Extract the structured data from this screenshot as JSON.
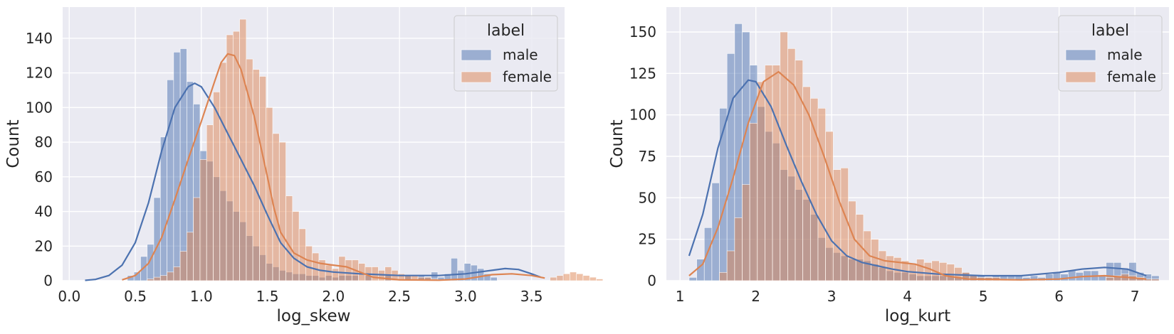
{
  "colors": {
    "male": "#4c72b0",
    "female": "#dd8452",
    "panel": "#eaeaf2",
    "grid": "#ffffff"
  },
  "chart_data": [
    {
      "type": "histogram",
      "xlabel": "log_skew",
      "ylabel": "Count",
      "xlim": [
        -0.05,
        3.75
      ],
      "ylim": [
        0,
        158
      ],
      "xticks": [
        "0.0",
        "0.5",
        "1.0",
        "1.5",
        "2.0",
        "2.5",
        "3.0",
        "3.5"
      ],
      "xtick_values": [
        0.0,
        0.5,
        1.0,
        1.5,
        2.0,
        2.5,
        3.0,
        3.5
      ],
      "yticks": [
        "0",
        "20",
        "40",
        "60",
        "80",
        "100",
        "120",
        "140"
      ],
      "ytick_values": [
        0,
        20,
        40,
        60,
        80,
        100,
        120,
        140
      ],
      "bin_start": 0.44,
      "bin_width": 0.05,
      "legend": {
        "title": "label",
        "entries": [
          "male",
          "female"
        ],
        "position": "top-right"
      },
      "series": [
        {
          "name": "male",
          "counts": [
            3,
            5,
            14,
            21,
            48,
            83,
            116,
            132,
            134,
            115,
            102,
            75,
            69,
            60,
            52,
            46,
            40,
            34,
            26,
            20,
            15,
            10,
            8,
            6,
            5,
            4,
            4,
            3,
            3,
            2,
            3,
            2,
            3,
            3,
            3,
            0,
            3,
            0,
            0,
            3,
            0,
            0,
            3,
            0,
            3,
            2,
            5,
            2,
            4,
            13,
            6,
            10,
            9,
            7,
            4,
            2
          ],
          "kde": [
            [
              0.12,
              0.2
            ],
            [
              0.2,
              0.8
            ],
            [
              0.3,
              3
            ],
            [
              0.4,
              9
            ],
            [
              0.5,
              22
            ],
            [
              0.6,
              45
            ],
            [
              0.7,
              75
            ],
            [
              0.8,
              100
            ],
            [
              0.9,
              112
            ],
            [
              0.95,
              114
            ],
            [
              1.0,
              112
            ],
            [
              1.1,
              100
            ],
            [
              1.2,
              85
            ],
            [
              1.3,
              70
            ],
            [
              1.4,
              55
            ],
            [
              1.5,
              38
            ],
            [
              1.6,
              22
            ],
            [
              1.7,
              13
            ],
            [
              1.8,
              8
            ],
            [
              1.9,
              6
            ],
            [
              2.0,
              5
            ],
            [
              2.2,
              4
            ],
            [
              2.5,
              3
            ],
            [
              2.8,
              3
            ],
            [
              3.0,
              4
            ],
            [
              3.2,
              6
            ],
            [
              3.3,
              7
            ],
            [
              3.4,
              6.5
            ],
            [
              3.5,
              4
            ],
            [
              3.57,
              2
            ]
          ]
        },
        {
          "name": "female",
          "counts": [
            0,
            0,
            0,
            1,
            2,
            3,
            5,
            8,
            17,
            28,
            48,
            70,
            90,
            109,
            126,
            142,
            144,
            151,
            128,
            122,
            118,
            100,
            85,
            80,
            49,
            40,
            30,
            20,
            16,
            12,
            9,
            7,
            14,
            12,
            12,
            10,
            8,
            8,
            6,
            8,
            6,
            4,
            3,
            3,
            2,
            2,
            1,
            0,
            0,
            0,
            0,
            0,
            0,
            0,
            0,
            0,
            0,
            0,
            0,
            0,
            0,
            0,
            0,
            0,
            2,
            3,
            4,
            5,
            4,
            3,
            2,
            1
          ],
          "kde": [
            [
              0.4,
              0.5
            ],
            [
              0.5,
              3
            ],
            [
              0.6,
              10
            ],
            [
              0.7,
              25
            ],
            [
              0.8,
              47
            ],
            [
              0.9,
              70
            ],
            [
              1.0,
              92
            ],
            [
              1.1,
              115
            ],
            [
              1.15,
              126
            ],
            [
              1.2,
              131
            ],
            [
              1.25,
              130
            ],
            [
              1.3,
              122
            ],
            [
              1.4,
              95
            ],
            [
              1.5,
              60
            ],
            [
              1.55,
              42
            ],
            [
              1.6,
              28
            ],
            [
              1.7,
              16
            ],
            [
              1.8,
              12
            ],
            [
              1.9,
              10
            ],
            [
              2.0,
              9
            ],
            [
              2.1,
              8
            ],
            [
              2.2,
              5
            ],
            [
              2.3,
              2
            ],
            [
              2.5,
              0.5
            ],
            [
              2.8,
              0.3
            ],
            [
              3.0,
              1
            ],
            [
              3.2,
              3.5
            ],
            [
              3.35,
              4
            ],
            [
              3.5,
              3
            ],
            [
              3.6,
              1.5
            ]
          ]
        }
      ]
    },
    {
      "type": "histogram",
      "xlabel": "log_kurt",
      "ylabel": "Count",
      "xlim": [
        0.82,
        7.45
      ],
      "ylim": [
        0,
        165
      ],
      "xticks": [
        "1",
        "2",
        "3",
        "4",
        "5",
        "6",
        "7"
      ],
      "xtick_values": [
        1,
        2,
        3,
        4,
        5,
        6,
        7
      ],
      "yticks": [
        "0",
        "25",
        "50",
        "75",
        "100",
        "125",
        "150"
      ],
      "ytick_values": [
        0,
        25,
        50,
        75,
        100,
        125,
        150
      ],
      "bin_start": 1.12,
      "bin_width": 0.1,
      "legend": {
        "title": "label",
        "entries": [
          "male",
          "female"
        ],
        "position": "top-right"
      },
      "series": [
        {
          "name": "male",
          "counts": [
            2,
            13,
            32,
            59,
            104,
            137,
            155,
            150,
            130,
            105,
            90,
            83,
            67,
            63,
            55,
            49,
            40,
            26,
            20,
            17,
            15,
            13,
            13,
            12,
            10,
            8,
            6,
            5,
            5,
            4,
            3,
            3,
            3,
            3,
            3,
            2,
            5,
            3,
            3,
            2,
            3,
            3,
            3,
            3,
            2,
            3,
            2,
            4,
            5,
            4,
            6,
            5,
            6,
            6,
            3,
            11,
            11,
            7,
            11,
            5,
            4,
            3
          ],
          "kde": [
            [
              1.12,
              15
            ],
            [
              1.3,
              40
            ],
            [
              1.5,
              80
            ],
            [
              1.7,
              110
            ],
            [
              1.9,
              121
            ],
            [
              2.0,
              120
            ],
            [
              2.2,
              105
            ],
            [
              2.4,
              82
            ],
            [
              2.6,
              60
            ],
            [
              2.8,
              40
            ],
            [
              3.0,
              24
            ],
            [
              3.2,
              15
            ],
            [
              3.4,
              11
            ],
            [
              3.6,
              9
            ],
            [
              3.8,
              7
            ],
            [
              4.0,
              5.5
            ],
            [
              4.4,
              4
            ],
            [
              5.0,
              3
            ],
            [
              5.5,
              3
            ],
            [
              6.0,
              5
            ],
            [
              6.3,
              7
            ],
            [
              6.6,
              8
            ],
            [
              6.9,
              7
            ],
            [
              7.15,
              3
            ]
          ]
        },
        {
          "name": "female",
          "counts": [
            0,
            0,
            0,
            0,
            5,
            18,
            38,
            58,
            95,
            120,
            130,
            130,
            150,
            140,
            133,
            117,
            110,
            104,
            90,
            67,
            68,
            48,
            40,
            30,
            25,
            18,
            15,
            14,
            12,
            10,
            13,
            11,
            12,
            11,
            10,
            8,
            5,
            3,
            2,
            2,
            2,
            1,
            1,
            0,
            0,
            0,
            1,
            0,
            0,
            0,
            0,
            0,
            0,
            0,
            0,
            2,
            3,
            4,
            3,
            2,
            1,
            1
          ],
          "kde": [
            [
              1.12,
              3
            ],
            [
              1.3,
              10
            ],
            [
              1.5,
              32
            ],
            [
              1.7,
              62
            ],
            [
              1.9,
              95
            ],
            [
              2.1,
              120
            ],
            [
              2.3,
              126
            ],
            [
              2.5,
              118
            ],
            [
              2.7,
              100
            ],
            [
              2.9,
              75
            ],
            [
              3.1,
              48
            ],
            [
              3.3,
              25
            ],
            [
              3.5,
              15
            ],
            [
              3.7,
              12
            ],
            [
              3.9,
              11
            ],
            [
              4.1,
              10
            ],
            [
              4.3,
              7
            ],
            [
              4.5,
              3
            ],
            [
              4.8,
              1
            ],
            [
              5.5,
              0.5
            ],
            [
              6.0,
              1
            ],
            [
              6.3,
              2.5
            ],
            [
              6.6,
              3
            ],
            [
              6.9,
              2
            ],
            [
              7.15,
              1
            ]
          ]
        }
      ]
    }
  ]
}
